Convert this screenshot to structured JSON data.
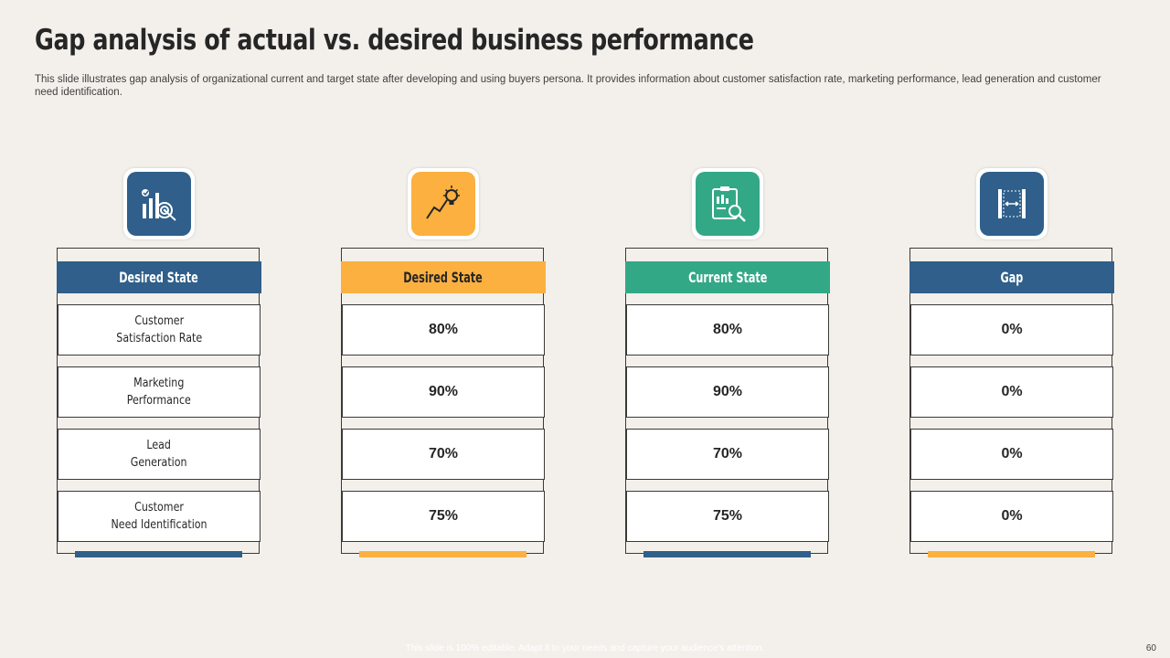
{
  "slide": {
    "title": "Gap analysis of actual vs. desired business performance",
    "subtitle": "This slide illustrates gap analysis of organizational current and target state after developing and using buyers persona. It provides information about customer satisfaction rate, marketing performance, lead generation and customer need identification.",
    "footer": "This slide is 100% editable. Adapt it to your needs and capture your audience's attention.",
    "page_number": "60"
  },
  "colors": {
    "blue": "#2f5f8a",
    "orange": "#fbb040",
    "green": "#33a886"
  },
  "columns": [
    {
      "icon": "chart-target-icon",
      "header": "Desired State",
      "header_color": "#2f5f8a",
      "header_text_color": "#ffffff",
      "cells": [
        "Customer\nSatisfaction Rate",
        "Marketing\nPerformance",
        "Lead\nGeneration",
        "Customer\nNeed Identification"
      ]
    },
    {
      "icon": "growth-lightbulb-icon",
      "header": "Desired State",
      "header_color": "#fbb040",
      "header_text_color": "#262626",
      "cells": [
        "80%",
        "90%",
        "70%",
        "75%"
      ]
    },
    {
      "icon": "clipboard-analysis-icon",
      "header": "Current State",
      "header_color": "#33a886",
      "header_text_color": "#ffffff",
      "cells": [
        "80%",
        "90%",
        "70%",
        "75%"
      ]
    },
    {
      "icon": "gap-measure-icon",
      "header": "Gap",
      "header_color": "#2f5f8a",
      "header_text_color": "#ffffff",
      "cells": [
        "0%",
        "0%",
        "0%",
        "0%"
      ]
    }
  ]
}
